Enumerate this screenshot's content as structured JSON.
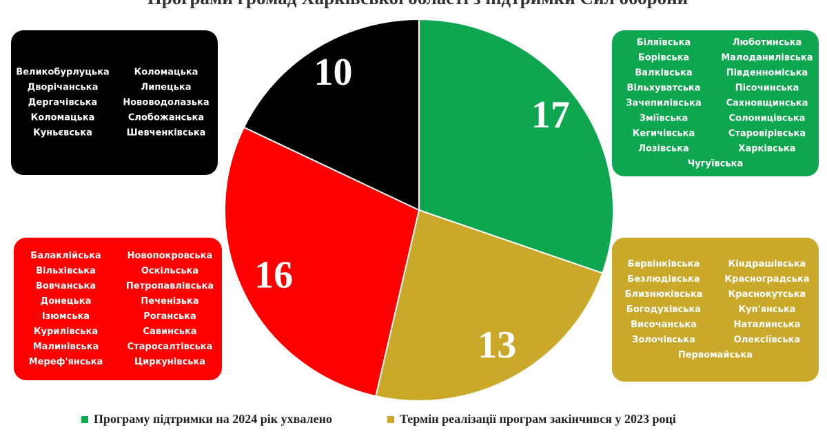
{
  "chart_data": {
    "type": "pie",
    "title": "Програми громад Харківської області з підтримки Сил оборони",
    "slices": [
      {
        "value": 17,
        "color": "#0ea64e",
        "legend": "Програму підтримки на 2024 рік ухвалено",
        "communities": [
          "Біляївська",
          "Борівська",
          "Валківська",
          "Вільхуватська",
          "Зачепилівська",
          "Зміївська",
          "Кегичівська",
          "Лозівська",
          "Люботинська",
          "Малоданилівська",
          "Південноміська",
          "Пісочинська",
          "Сахновщинська",
          "Солоницівська",
          "Старовірівська",
          "Харківська",
          "Чугуївська"
        ]
      },
      {
        "value": 13,
        "color": "#c9a82a",
        "legend": "Термін реалізації програм закінчився у 2023 році",
        "communities": [
          "Барвінківська",
          "Безлюдівська",
          "Близнюківська",
          "Богодухівська",
          "Височанська",
          "Золочівська",
          "Кіндрашівська",
          "Красноградська",
          "Краснокутська",
          "Куп'янська",
          "Наталинська",
          "Олексіївська",
          "Первомайська"
        ]
      },
      {
        "value": 16,
        "color": "#ff0000",
        "communities": [
          "Балаклійська",
          "Вільхівська",
          "Вовчанська",
          "Донецька",
          "Ізюмська",
          "Курилівська",
          "Малинівська",
          "Мереф'янська",
          "Новопокровська",
          "Оскільська",
          "Петропавлівська",
          "Печенізька",
          "Роганська",
          "Савинська",
          "Старосалтівська",
          "Циркунівська"
        ]
      },
      {
        "value": 10,
        "color": "#000000",
        "communities": [
          "Великобурлуцька",
          "Дворічанська",
          "Дергачівська",
          "Коломацька",
          "Куньєвська",
          "Коломацька",
          "Липецька",
          "Нововодолазька",
          "Слобожанська",
          "Шевченківська"
        ]
      }
    ]
  }
}
